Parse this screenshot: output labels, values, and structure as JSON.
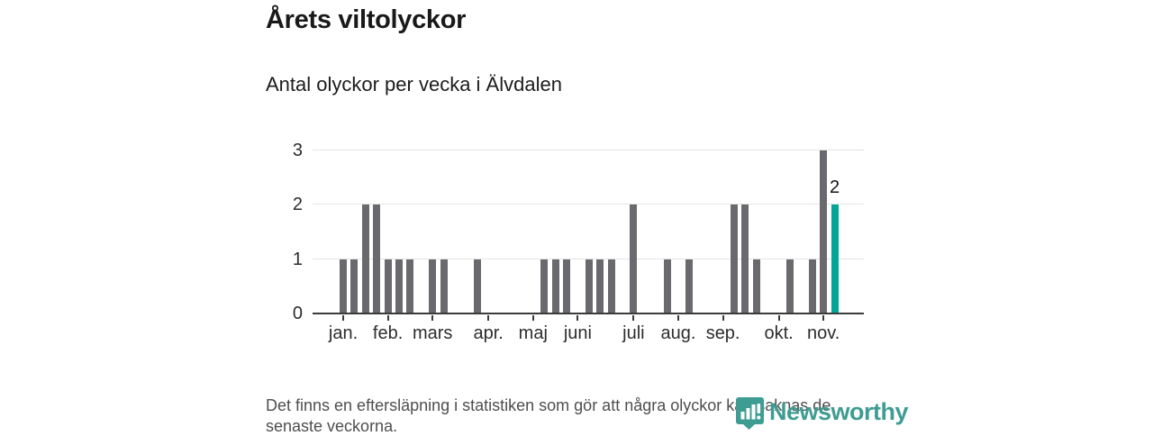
{
  "header": {
    "title": "Årets viltolyckor",
    "subtitle": "Antal olyckor per vecka i Älvdalen"
  },
  "chart_data": {
    "type": "bar",
    "title": "Årets viltolyckor",
    "subtitle": "Antal olyckor per vecka i Älvdalen",
    "x_unit": "vecka",
    "values": [
      1,
      1,
      2,
      2,
      1,
      1,
      1,
      0,
      1,
      1,
      0,
      0,
      1,
      0,
      0,
      0,
      0,
      0,
      1,
      1,
      1,
      0,
      1,
      1,
      1,
      0,
      2,
      0,
      0,
      1,
      0,
      1,
      0,
      0,
      0,
      2,
      2,
      1,
      0,
      0,
      1,
      0,
      1,
      3,
      2
    ],
    "yticks": [
      0,
      1,
      2,
      3
    ],
    "ylim": [
      0,
      3
    ],
    "grid": true,
    "month_ticks": [
      {
        "label": "jan.",
        "week": 0
      },
      {
        "label": "feb.",
        "week": 4
      },
      {
        "label": "mars",
        "week": 8
      },
      {
        "label": "apr.",
        "week": 13
      },
      {
        "label": "maj",
        "week": 17
      },
      {
        "label": "juni",
        "week": 21
      },
      {
        "label": "juli",
        "week": 26
      },
      {
        "label": "aug.",
        "week": 30
      },
      {
        "label": "sep.",
        "week": 34
      },
      {
        "label": "okt.",
        "week": 39
      },
      {
        "label": "nov.",
        "week": 43
      }
    ],
    "bar_color": "#6a6a6e",
    "highlight_last": true,
    "highlight_color": "#00a698",
    "last_value_label": "2",
    "grid_color": "#e4e4e4",
    "axis_color": "#3b3b3b"
  },
  "footer": {
    "note": "Det finns en eftersläpning i statistiken som gör att några olyckor kan saknas de senaste veckorna.",
    "logo_text": "Newsworthy",
    "logo_color": "#3f9c93"
  }
}
